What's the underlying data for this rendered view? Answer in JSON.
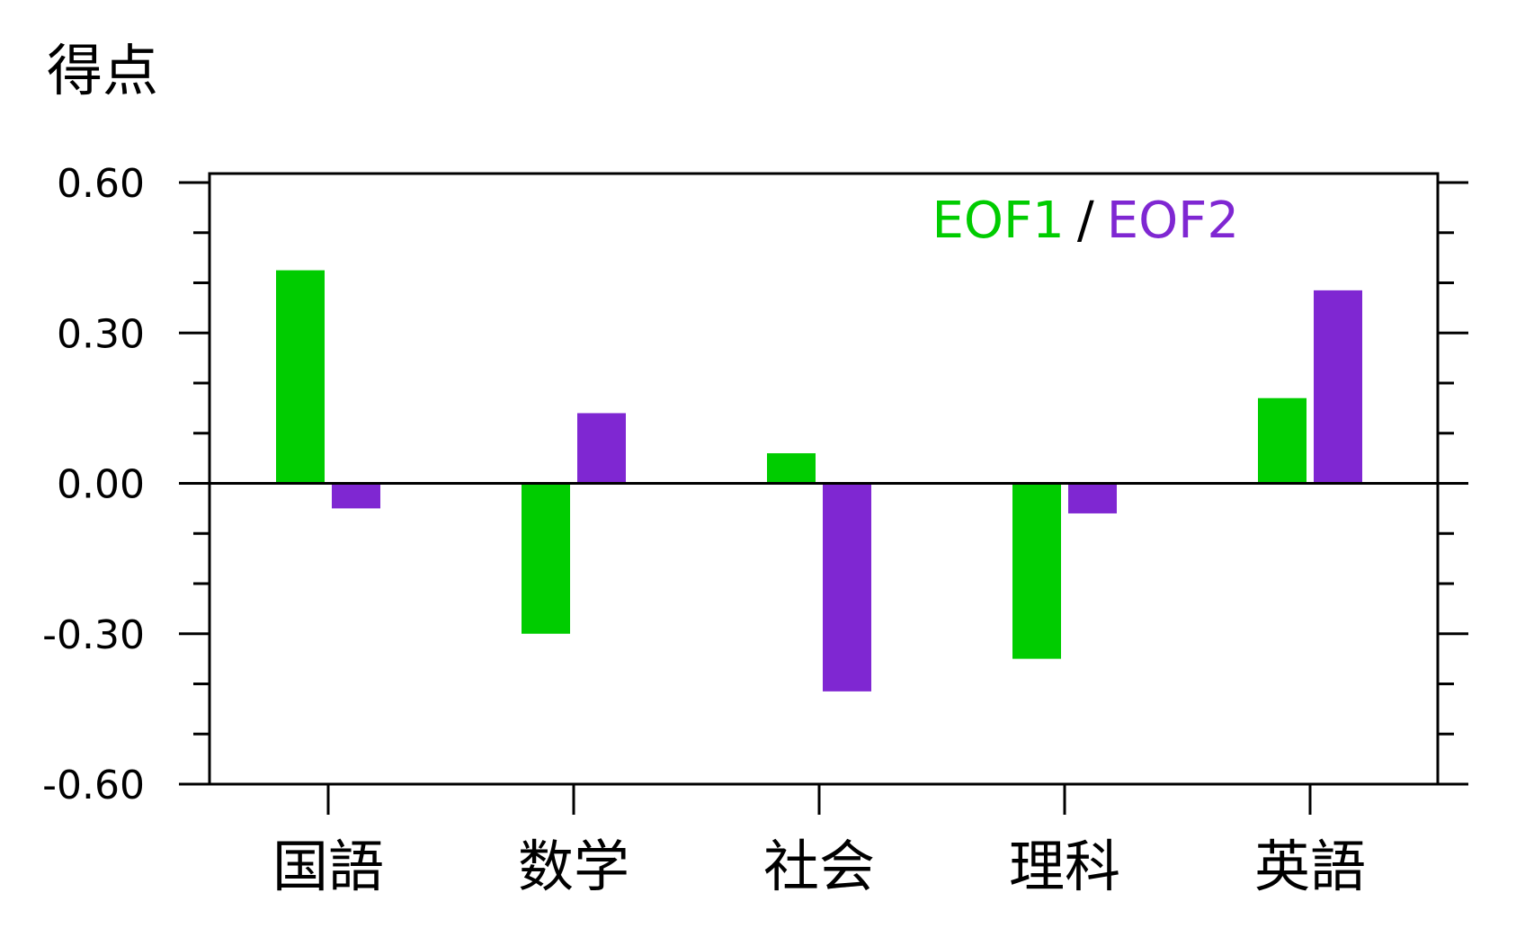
{
  "chart_data": {
    "type": "bar",
    "ylabel": "得点",
    "categories": [
      "国語",
      "数学",
      "社会",
      "理科",
      "英語"
    ],
    "series": [
      {
        "name": "EOF1",
        "color": "#00cc00",
        "values": [
          0.425,
          -0.3,
          0.06,
          -0.35,
          0.17
        ]
      },
      {
        "name": "EOF2",
        "color": "#7f27d2",
        "values": [
          -0.05,
          0.14,
          -0.415,
          -0.06,
          0.385
        ]
      }
    ],
    "ylim": [
      -0.6,
      0.6
    ],
    "yticks": [
      "0.60",
      "0.30",
      "0.00",
      "-0.30",
      "-0.60"
    ],
    "ytick_values": [
      0.6,
      0.3,
      0.0,
      -0.3,
      -0.6
    ],
    "minor_step": 0.1,
    "legend": {
      "separator": "/",
      "placement": "top-right"
    },
    "zero_line": true,
    "grid": false
  }
}
